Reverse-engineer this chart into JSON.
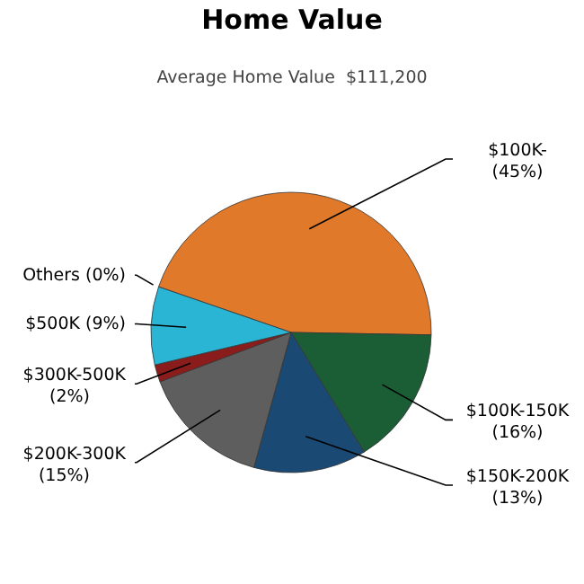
{
  "chart_data": {
    "type": "pie",
    "title": "Home Value",
    "subtitle": "Average Home Value  $111,200",
    "categories": [
      "$100K-",
      "$100K-150K",
      "$150K-200K",
      "$200K-300K",
      "$300K-500K",
      "$500K",
      "Others"
    ],
    "values": [
      45,
      16,
      13,
      15,
      2,
      9,
      0
    ],
    "value_labels": [
      "(45%)",
      "(16%)",
      "(13%)",
      "(15%)",
      "(2%)",
      "(9%)",
      "(0%)"
    ],
    "colors": [
      "#e07a2a",
      "#1b5e36",
      "#1a4a73",
      "#5e5e5e",
      "#8b1c1c",
      "#2bb5d4",
      "#9bbb59"
    ]
  }
}
